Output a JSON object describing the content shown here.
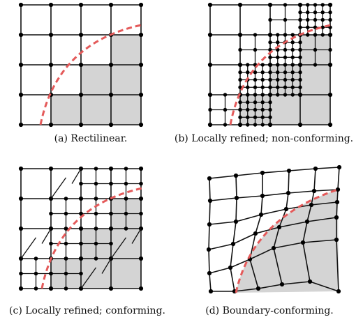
{
  "figure": {
    "panels": [
      {
        "id": "a",
        "caption": "(a) Rectilinear."
      },
      {
        "id": "b",
        "caption": "(b) Locally refined; non-conforming."
      },
      {
        "id": "c",
        "caption": "(c) Locally refined; conforming."
      },
      {
        "id": "d",
        "caption": "(d) Boundary-conforming."
      }
    ],
    "colors": {
      "line": "#111111",
      "node": "#000000",
      "fill": "#d4d4d4",
      "boundary": "#e45a5a"
    }
  }
}
